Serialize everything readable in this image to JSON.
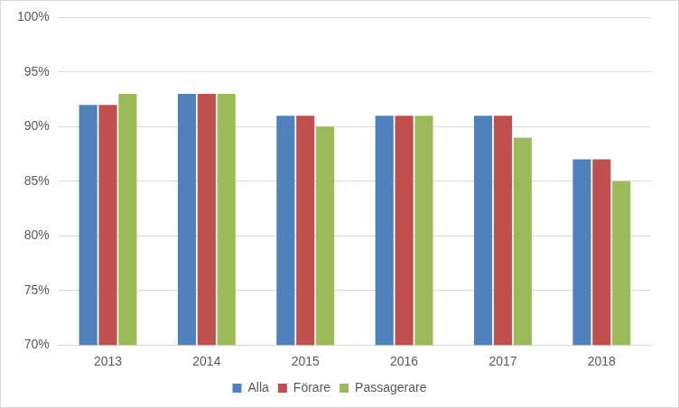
{
  "chart_data": {
    "type": "bar",
    "categories": [
      "2013",
      "2014",
      "2015",
      "2016",
      "2017",
      "2018"
    ],
    "series": [
      {
        "name": "Alla",
        "color": "#4f81bd",
        "values": [
          92,
          93,
          91,
          91,
          91,
          87
        ]
      },
      {
        "name": "Förare",
        "color": "#c0504d",
        "values": [
          92,
          93,
          91,
          91,
          91,
          87
        ]
      },
      {
        "name": "Passagerare",
        "color": "#9bbb59",
        "values": [
          93,
          93,
          90,
          91,
          89,
          85
        ]
      }
    ],
    "ylim": [
      70,
      100
    ],
    "yticks": [
      {
        "value": 70,
        "label": "70%"
      },
      {
        "value": 75,
        "label": "75%"
      },
      {
        "value": 80,
        "label": "80%"
      },
      {
        "value": 85,
        "label": "85%"
      },
      {
        "value": 90,
        "label": "90%"
      },
      {
        "value": 95,
        "label": "95%"
      },
      {
        "value": 100,
        "label": "100%"
      }
    ],
    "grid": true,
    "legend": "bottom"
  }
}
